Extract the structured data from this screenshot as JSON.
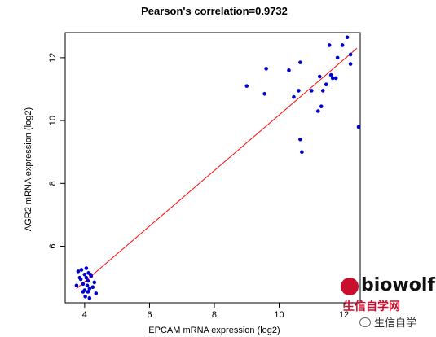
{
  "chart_data": {
    "type": "scatter",
    "title": "Pearson's correlation=0.9732",
    "xlabel": "EPCAM mRNA expression (log2)",
    "ylabel": "AGR2 mRNA expression (log2)",
    "xlim": [
      3.4,
      12.5
    ],
    "ylim": [
      4.2,
      12.8
    ],
    "xticks": [
      4,
      6,
      8,
      10,
      12
    ],
    "yticks": [
      6,
      8,
      10,
      12
    ],
    "grid": false,
    "point_color": "#0000cc",
    "line_color": "#ff0000",
    "series": [
      {
        "points": [
          [
            3.75,
            4.75
          ],
          [
            3.8,
            5.2
          ],
          [
            3.85,
            5.0
          ],
          [
            3.9,
            5.25
          ],
          [
            3.95,
            4.8
          ],
          [
            3.95,
            4.55
          ],
          [
            4.0,
            5.1
          ],
          [
            4.0,
            4.6
          ],
          [
            4.02,
            4.4
          ],
          [
            4.05,
            5.3
          ],
          [
            4.05,
            5.0
          ],
          [
            4.08,
            4.75
          ],
          [
            4.1,
            4.9
          ],
          [
            4.12,
            5.15
          ],
          [
            4.15,
            4.35
          ],
          [
            4.15,
            4.65
          ],
          [
            4.2,
            5.05
          ],
          [
            4.25,
            4.7
          ],
          [
            4.3,
            4.85
          ],
          [
            4.35,
            4.5
          ],
          [
            3.88,
            4.95
          ],
          [
            4.18,
            5.1
          ],
          [
            4.1,
            4.55
          ],
          [
            9.0,
            11.1
          ],
          [
            9.55,
            10.85
          ],
          [
            9.6,
            11.65
          ],
          [
            10.3,
            11.6
          ],
          [
            10.45,
            10.75
          ],
          [
            10.6,
            10.95
          ],
          [
            10.65,
            11.85
          ],
          [
            10.65,
            9.4
          ],
          [
            10.7,
            9.0
          ],
          [
            11.0,
            10.95
          ],
          [
            11.2,
            10.3
          ],
          [
            11.25,
            11.4
          ],
          [
            11.3,
            10.45
          ],
          [
            11.35,
            10.95
          ],
          [
            11.45,
            11.15
          ],
          [
            11.55,
            12.4
          ],
          [
            11.6,
            11.45
          ],
          [
            11.65,
            11.35
          ],
          [
            11.75,
            11.35
          ],
          [
            11.8,
            12.0
          ],
          [
            11.95,
            12.4
          ],
          [
            12.1,
            12.65
          ],
          [
            12.2,
            12.1
          ],
          [
            12.2,
            11.8
          ],
          [
            12.45,
            9.8
          ]
        ]
      }
    ],
    "fit_line": {
      "x": [
        3.75,
        12.4
      ],
      "y": [
        4.65,
        12.3
      ]
    }
  },
  "watermark": {
    "brand": "biowolf",
    "sub": "生信自学网",
    "wechat": "生信自学"
  }
}
